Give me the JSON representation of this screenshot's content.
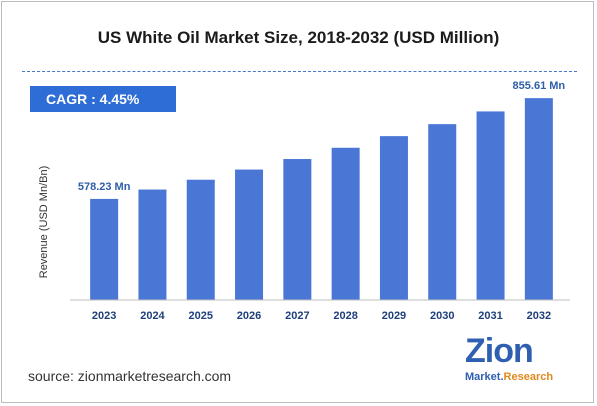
{
  "chart_data": {
    "type": "bar",
    "title": "US White Oil Market Size, 2018-2032 (USD Million)",
    "ylabel": "Revenue (USD Mn/Bn)",
    "categories": [
      "2023",
      "2024",
      "2025",
      "2026",
      "2027",
      "2028",
      "2029",
      "2030",
      "2031",
      "2032"
    ],
    "values": [
      578.23,
      604,
      631,
      659,
      688,
      719,
      751,
      784,
      819,
      855.61
    ],
    "ylim": [
      300,
      900
    ],
    "grid": false,
    "annotations": [
      {
        "category": "2023",
        "text": "578.23 Mn"
      },
      {
        "category": "2032",
        "text": "855.61 Mn"
      }
    ],
    "colors": {
      "bar": "#4a76d6",
      "annotation": "#2f5fa8"
    }
  },
  "cagr": {
    "label": "CAGR : 4.45%"
  },
  "source": "source: zionmarketresearch.com",
  "logo": {
    "word": "Zion",
    "sub_part1": "Market.",
    "sub_part2": "Research"
  }
}
